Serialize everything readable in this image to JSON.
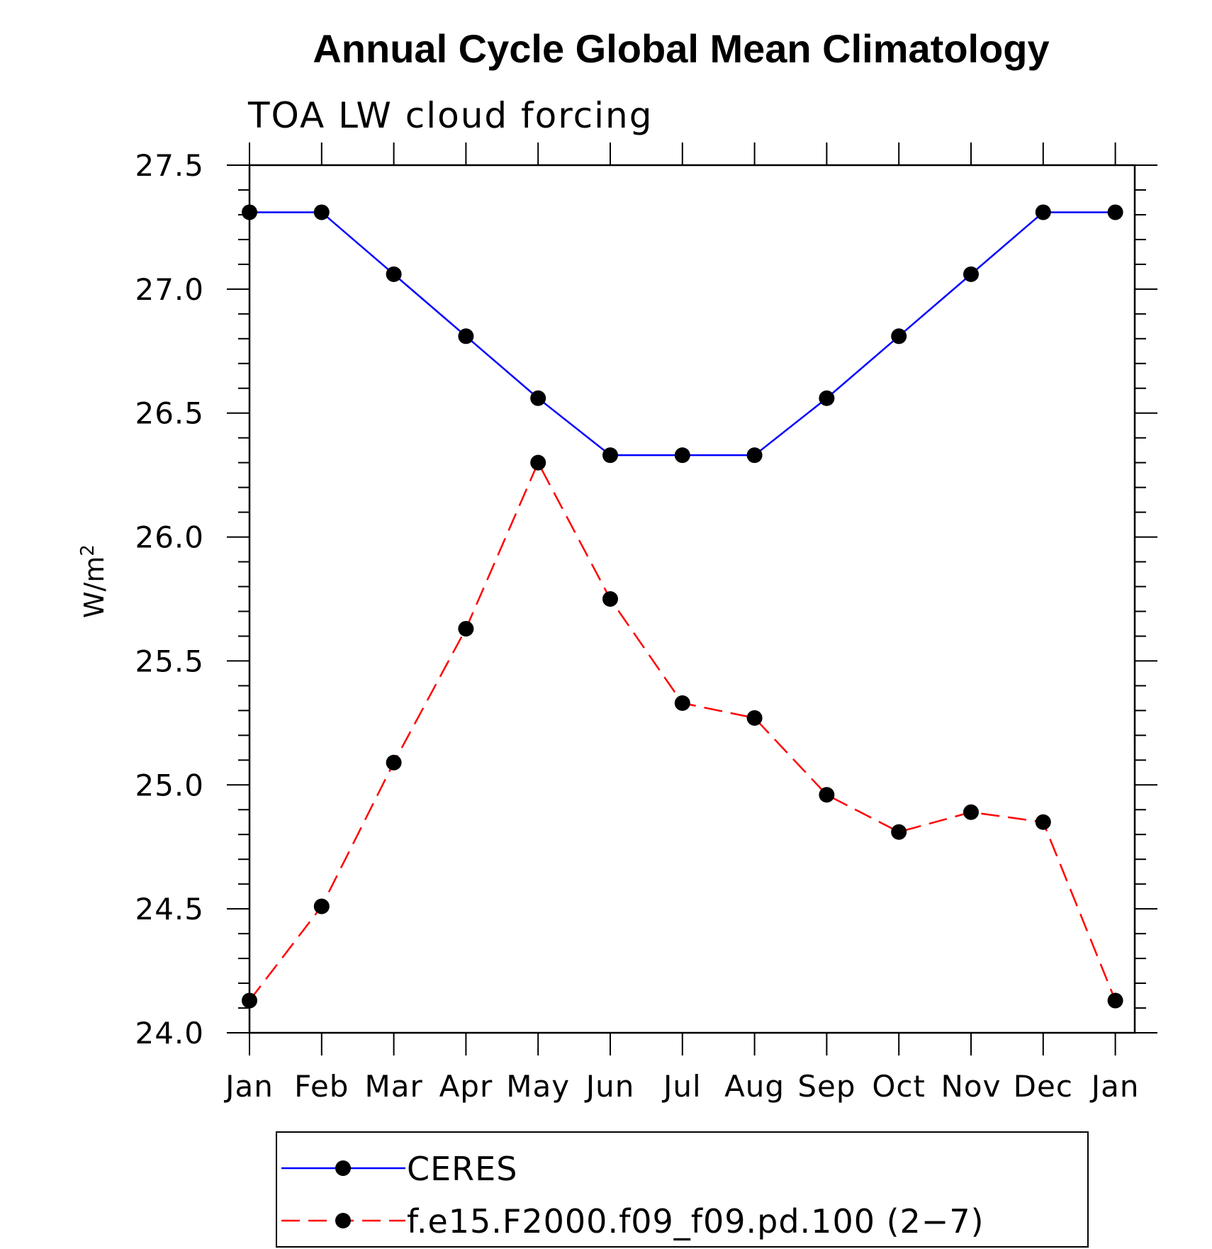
{
  "chart_data": {
    "type": "line",
    "title": "Annual Cycle Global Mean Climatology",
    "subtitle": "TOA LW cloud forcing",
    "xlabel": "",
    "ylabel": "W/m",
    "ylabel_superscript": "2",
    "categories": [
      "Jan",
      "Feb",
      "Mar",
      "Apr",
      "May",
      "Jun",
      "Jul",
      "Aug",
      "Sep",
      "Oct",
      "Nov",
      "Dec",
      "Jan"
    ],
    "yticks": [
      "24.0",
      "24.5",
      "25.0",
      "25.5",
      "26.0",
      "26.5",
      "27.0",
      "27.5"
    ],
    "ylim": [
      24.0,
      27.5
    ],
    "grid": false,
    "legend_position": "bottom",
    "series": [
      {
        "name": "CERES",
        "color": "#0000ff",
        "dash": "solid",
        "marker": "filled-circle",
        "values": [
          27.31,
          27.31,
          27.06,
          26.81,
          26.56,
          26.33,
          26.33,
          26.33,
          26.56,
          26.81,
          27.06,
          27.31,
          27.31
        ]
      },
      {
        "name": "f.e15.F2000.f09_f09.pd.100 (2−7)",
        "color": "#ff0000",
        "dash": "dashed",
        "marker": "filled-circle",
        "values": [
          24.13,
          24.51,
          25.09,
          25.63,
          26.3,
          25.75,
          25.33,
          25.27,
          24.96,
          24.81,
          24.89,
          24.85,
          24.13
        ]
      }
    ]
  }
}
